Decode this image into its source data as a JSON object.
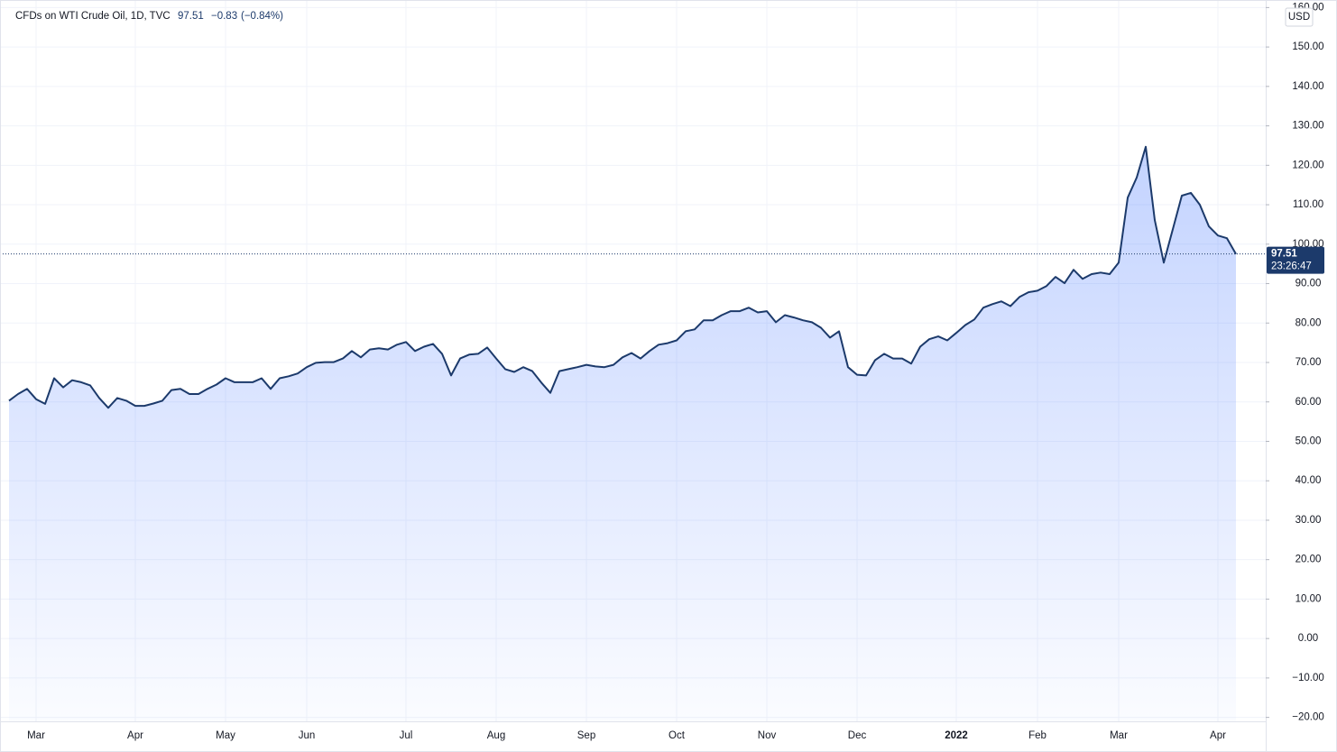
{
  "chart_data": {
    "type": "area",
    "title": "CFDs on WTI Crude Oil, 1D, TVC",
    "change_label": "−0.83",
    "change_pct_label": "(−0.84%)",
    "currency": "USD",
    "countdown": "23:26:47",
    "color": "#1c3a6b",
    "grid": true,
    "categories": [
      null,
      null,
      null,
      "Mar",
      null,
      null,
      null,
      null,
      null,
      null,
      null,
      null,
      null,
      null,
      "Apr",
      null,
      null,
      null,
      null,
      null,
      null,
      null,
      null,
      null,
      "May",
      null,
      null,
      null,
      null,
      null,
      null,
      null,
      null,
      "Jun",
      null,
      null,
      null,
      null,
      null,
      null,
      null,
      null,
      null,
      null,
      "Jul",
      null,
      null,
      null,
      null,
      null,
      null,
      null,
      null,
      null,
      "Aug",
      null,
      null,
      null,
      null,
      null,
      null,
      null,
      null,
      null,
      "Sep",
      null,
      null,
      null,
      null,
      null,
      null,
      null,
      null,
      null,
      "Oct",
      null,
      null,
      null,
      null,
      null,
      null,
      null,
      null,
      null,
      "Nov",
      null,
      null,
      null,
      null,
      null,
      null,
      null,
      null,
      null,
      "Dec",
      null,
      null,
      null,
      null,
      null,
      null,
      null,
      null,
      null,
      null,
      "2022",
      null,
      null,
      null,
      null,
      null,
      null,
      null,
      null,
      "Feb",
      null,
      null,
      null,
      null,
      null,
      null,
      null,
      null,
      "Mar",
      null,
      null,
      null,
      null,
      null,
      null,
      null,
      null,
      null,
      null,
      "Apr",
      null,
      null
    ],
    "values": [
      60.3,
      62,
      63.3,
      60.7,
      59.5,
      66,
      63.7,
      65.5,
      65,
      64.2,
      61,
      58.5,
      61,
      60.3,
      59,
      59,
      59.6,
      60.3,
      63,
      63.3,
      62,
      62,
      63.3,
      64.4,
      66,
      65,
      65,
      65,
      66,
      63.3,
      66,
      66.5,
      67.2,
      68.8,
      69.9,
      70.1,
      70.1,
      71,
      72.9,
      71.3,
      73.3,
      73.6,
      73.3,
      74.5,
      75.2,
      72.9,
      74,
      74.7,
      72.2,
      66.7,
      71,
      72,
      72.2,
      73.8,
      71,
      68.3,
      67.6,
      68.8,
      67.8,
      64.9,
      62.3,
      67.8,
      68.3,
      68.8,
      69.4,
      69,
      68.8,
      69.4,
      71.3,
      72.4,
      71,
      72.9,
      74.5,
      74.9,
      75.6,
      77.9,
      78.4,
      80.7,
      80.7,
      82,
      83,
      83,
      83.9,
      82.7,
      83,
      80.2,
      82,
      81.4,
      80.7,
      80.2,
      78.8,
      76.3,
      77.9,
      68.8,
      66.9,
      66.7,
      70.6,
      72.2,
      71,
      71,
      69.7,
      74,
      75.9,
      76.6,
      75.6,
      77.5,
      79.5,
      80.9,
      83.9,
      84.8,
      85.5,
      84.3,
      86.6,
      87.8,
      88.2,
      89.4,
      91.7,
      90.1,
      93.5,
      91.2,
      92.4,
      92.8,
      92.4,
      95.3,
      111.8,
      116.9,
      124.7,
      106.1,
      95.3,
      103.8,
      112.3,
      113,
      110,
      104.5,
      102.2,
      101.5,
      97.51
    ],
    "ylim": [
      -21,
      161
    ],
    "yticks": [
      {
        "value": -20,
        "label": "−20.00"
      },
      {
        "value": -10,
        "label": "−10.00"
      },
      {
        "value": 0,
        "label": "0.00"
      },
      {
        "value": 10,
        "label": "10.00"
      },
      {
        "value": 20,
        "label": "20.00"
      },
      {
        "value": 30,
        "label": "30.00"
      },
      {
        "value": 40,
        "label": "40.00"
      },
      {
        "value": 50,
        "label": "50.00"
      },
      {
        "value": 60,
        "label": "60.00"
      },
      {
        "value": 70,
        "label": "70.00"
      },
      {
        "value": 80,
        "label": "80.00"
      },
      {
        "value": 90,
        "label": "90.00"
      },
      {
        "value": 100,
        "label": "100.00"
      },
      {
        "value": 110,
        "label": "110.00"
      },
      {
        "value": 120,
        "label": "120.00"
      },
      {
        "value": 130,
        "label": "130.00"
      },
      {
        "value": 140,
        "label": "140.00"
      },
      {
        "value": 150,
        "label": "150.00"
      },
      {
        "value": 160,
        "label": "160.00"
      }
    ]
  }
}
